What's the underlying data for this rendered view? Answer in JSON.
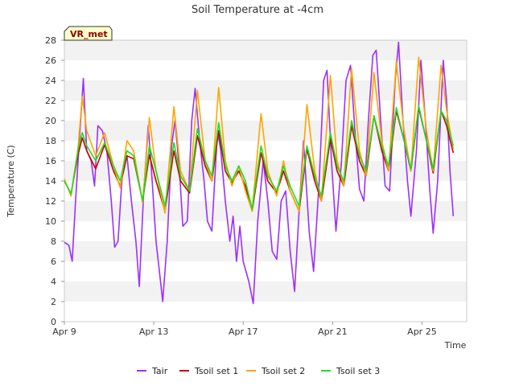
{
  "chart_data": {
    "type": "line",
    "title": "Soil Temperature at -4cm",
    "xlabel": "Time",
    "ylabel": "Temperature (C)",
    "site_label": "VR_met",
    "x_range_days": [
      9,
      27
    ],
    "xlim": [
      "Apr 9",
      "Apr 27"
    ],
    "x_ticks": [
      {
        "day": 9,
        "label": "Apr 9"
      },
      {
        "day": 13,
        "label": "Apr 13"
      },
      {
        "day": 17,
        "label": "Apr 17"
      },
      {
        "day": 21,
        "label": "Apr 21"
      },
      {
        "day": 25,
        "label": "Apr 25"
      }
    ],
    "ylim": [
      0,
      28
    ],
    "y_ticks": [
      0,
      2,
      4,
      6,
      8,
      10,
      12,
      14,
      16,
      18,
      20,
      22,
      24,
      26,
      28
    ],
    "grid": "horizontal bands",
    "legend_position": "bottom",
    "series": [
      {
        "name": "Tair",
        "color": "#9b30ff",
        "points": [
          [
            9.0,
            7.9
          ],
          [
            9.2,
            7.6
          ],
          [
            9.35,
            6.0
          ],
          [
            9.5,
            12.0
          ],
          [
            9.7,
            19.0
          ],
          [
            9.85,
            24.2
          ],
          [
            10.0,
            17.0
          ],
          [
            10.2,
            16.0
          ],
          [
            10.35,
            13.5
          ],
          [
            10.5,
            19.5
          ],
          [
            10.7,
            19.0
          ],
          [
            10.9,
            17.0
          ],
          [
            11.1,
            12.0
          ],
          [
            11.25,
            7.4
          ],
          [
            11.4,
            8.0
          ],
          [
            11.6,
            15.0
          ],
          [
            11.8,
            16.5
          ],
          [
            12.0,
            12.0
          ],
          [
            12.2,
            8.0
          ],
          [
            12.35,
            3.5
          ],
          [
            12.55,
            13.0
          ],
          [
            12.75,
            19.5
          ],
          [
            12.9,
            15.0
          ],
          [
            13.1,
            8.0
          ],
          [
            13.25,
            5.0
          ],
          [
            13.4,
            2.0
          ],
          [
            13.6,
            8.0
          ],
          [
            13.8,
            17.5
          ],
          [
            13.95,
            20.0
          ],
          [
            14.15,
            15.0
          ],
          [
            14.3,
            9.5
          ],
          [
            14.5,
            10.0
          ],
          [
            14.7,
            20.0
          ],
          [
            14.85,
            23.2
          ],
          [
            15.05,
            18.0
          ],
          [
            15.25,
            14.0
          ],
          [
            15.4,
            10.0
          ],
          [
            15.6,
            9.0
          ],
          [
            15.85,
            19.0
          ],
          [
            16.0,
            17.0
          ],
          [
            16.2,
            12.0
          ],
          [
            16.4,
            8.0
          ],
          [
            16.55,
            10.5
          ],
          [
            16.7,
            6.0
          ],
          [
            16.85,
            9.5
          ],
          [
            17.0,
            6.0
          ],
          [
            17.25,
            4.0
          ],
          [
            17.45,
            1.8
          ],
          [
            17.65,
            10.0
          ],
          [
            17.9,
            16.0
          ],
          [
            18.1,
            12.0
          ],
          [
            18.3,
            7.0
          ],
          [
            18.5,
            6.2
          ],
          [
            18.7,
            12.0
          ],
          [
            18.9,
            13.0
          ],
          [
            19.1,
            7.0
          ],
          [
            19.3,
            3.0
          ],
          [
            19.5,
            11.0
          ],
          [
            19.7,
            18.0
          ],
          [
            19.95,
            9.0
          ],
          [
            20.15,
            5.0
          ],
          [
            20.4,
            14.0
          ],
          [
            20.6,
            24.0
          ],
          [
            20.75,
            25.0
          ],
          [
            20.95,
            16.0
          ],
          [
            21.15,
            9.0
          ],
          [
            21.4,
            16.0
          ],
          [
            21.6,
            24.0
          ],
          [
            21.8,
            25.5
          ],
          [
            22.0,
            19.0
          ],
          [
            22.2,
            13.2
          ],
          [
            22.4,
            12.0
          ],
          [
            22.6,
            20.0
          ],
          [
            22.8,
            26.5
          ],
          [
            22.95,
            27.0
          ],
          [
            23.15,
            20.0
          ],
          [
            23.35,
            13.5
          ],
          [
            23.55,
            13.0
          ],
          [
            23.8,
            24.0
          ],
          [
            23.95,
            27.8
          ],
          [
            24.15,
            20.0
          ],
          [
            24.35,
            14.0
          ],
          [
            24.5,
            10.5
          ],
          [
            24.75,
            17.0
          ],
          [
            24.95,
            26.0
          ],
          [
            25.15,
            20.0
          ],
          [
            25.35,
            13.0
          ],
          [
            25.5,
            8.8
          ],
          [
            25.7,
            14.0
          ],
          [
            25.95,
            26.0
          ],
          [
            26.1,
            22.0
          ],
          [
            26.25,
            15.0
          ],
          [
            26.4,
            10.5
          ]
        ]
      },
      {
        "name": "Tsoil set 1",
        "color": "#cc0000",
        "points": [
          [
            9.0,
            14.0
          ],
          [
            9.3,
            12.7
          ],
          [
            9.6,
            16.5
          ],
          [
            9.8,
            18.3
          ],
          [
            10.0,
            17.0
          ],
          [
            10.4,
            15.2
          ],
          [
            10.8,
            17.6
          ],
          [
            11.2,
            15.0
          ],
          [
            11.5,
            13.5
          ],
          [
            11.8,
            16.5
          ],
          [
            12.1,
            16.2
          ],
          [
            12.5,
            12.0
          ],
          [
            12.8,
            16.6
          ],
          [
            13.1,
            14.0
          ],
          [
            13.5,
            11.0
          ],
          [
            13.9,
            17.0
          ],
          [
            14.2,
            14.0
          ],
          [
            14.6,
            12.8
          ],
          [
            14.95,
            18.5
          ],
          [
            15.3,
            15.5
          ],
          [
            15.6,
            14.0
          ],
          [
            15.9,
            19.0
          ],
          [
            16.2,
            15.0
          ],
          [
            16.5,
            13.8
          ],
          [
            16.8,
            15.0
          ],
          [
            17.1,
            13.5
          ],
          [
            17.4,
            11.0
          ],
          [
            17.8,
            16.8
          ],
          [
            18.1,
            14.0
          ],
          [
            18.5,
            12.8
          ],
          [
            18.8,
            15.0
          ],
          [
            19.1,
            13.0
          ],
          [
            19.5,
            11.0
          ],
          [
            19.85,
            17.2
          ],
          [
            20.2,
            14.0
          ],
          [
            20.5,
            12.0
          ],
          [
            20.9,
            18.2
          ],
          [
            21.2,
            15.0
          ],
          [
            21.5,
            13.5
          ],
          [
            21.85,
            19.5
          ],
          [
            22.2,
            16.0
          ],
          [
            22.5,
            14.5
          ],
          [
            22.85,
            20.5
          ],
          [
            23.2,
            17.0
          ],
          [
            23.5,
            15.0
          ],
          [
            23.85,
            21.0
          ],
          [
            24.2,
            18.0
          ],
          [
            24.5,
            15.0
          ],
          [
            24.85,
            21.3
          ],
          [
            25.2,
            18.0
          ],
          [
            25.5,
            14.8
          ],
          [
            25.85,
            21.0
          ],
          [
            26.1,
            19.5
          ],
          [
            26.4,
            16.8
          ]
        ]
      },
      {
        "name": "Tsoil set 2",
        "color": "#ffa500",
        "points": [
          [
            9.0,
            14.2
          ],
          [
            9.3,
            12.5
          ],
          [
            9.6,
            17.0
          ],
          [
            9.8,
            22.4
          ],
          [
            10.0,
            19.0
          ],
          [
            10.4,
            16.5
          ],
          [
            10.8,
            18.8
          ],
          [
            11.2,
            15.5
          ],
          [
            11.5,
            13.3
          ],
          [
            11.8,
            18.0
          ],
          [
            12.1,
            17.0
          ],
          [
            12.5,
            11.8
          ],
          [
            12.8,
            20.3
          ],
          [
            13.1,
            15.0
          ],
          [
            13.5,
            10.8
          ],
          [
            13.9,
            21.4
          ],
          [
            14.2,
            15.0
          ],
          [
            14.6,
            13.0
          ],
          [
            14.95,
            23.0
          ],
          [
            15.3,
            16.0
          ],
          [
            15.6,
            14.0
          ],
          [
            15.9,
            23.3
          ],
          [
            16.2,
            16.0
          ],
          [
            16.5,
            13.5
          ],
          [
            16.8,
            15.5
          ],
          [
            17.1,
            13.0
          ],
          [
            17.4,
            11.0
          ],
          [
            17.8,
            20.7
          ],
          [
            18.1,
            15.0
          ],
          [
            18.5,
            12.5
          ],
          [
            18.8,
            16.0
          ],
          [
            19.1,
            13.0
          ],
          [
            19.5,
            11.0
          ],
          [
            19.85,
            21.6
          ],
          [
            20.2,
            15.0
          ],
          [
            20.5,
            12.0
          ],
          [
            20.9,
            24.5
          ],
          [
            21.2,
            16.0
          ],
          [
            21.5,
            13.5
          ],
          [
            21.85,
            25.2
          ],
          [
            22.2,
            17.0
          ],
          [
            22.5,
            14.5
          ],
          [
            22.85,
            24.8
          ],
          [
            23.2,
            18.0
          ],
          [
            23.5,
            15.0
          ],
          [
            23.85,
            25.9
          ],
          [
            24.2,
            19.0
          ],
          [
            24.5,
            15.0
          ],
          [
            24.85,
            26.3
          ],
          [
            25.2,
            19.0
          ],
          [
            25.5,
            15.0
          ],
          [
            25.85,
            25.5
          ],
          [
            26.1,
            21.0
          ],
          [
            26.4,
            17.2
          ]
        ]
      },
      {
        "name": "Tsoil set 3",
        "color": "#22dd22",
        "points": [
          [
            9.0,
            14.0
          ],
          [
            9.3,
            12.7
          ],
          [
            9.6,
            17.0
          ],
          [
            9.8,
            18.8
          ],
          [
            10.0,
            17.5
          ],
          [
            10.4,
            16.0
          ],
          [
            10.8,
            17.8
          ],
          [
            11.2,
            15.5
          ],
          [
            11.5,
            14.0
          ],
          [
            11.8,
            17.0
          ],
          [
            12.1,
            16.5
          ],
          [
            12.5,
            12.0
          ],
          [
            12.8,
            17.5
          ],
          [
            13.1,
            15.0
          ],
          [
            13.5,
            11.5
          ],
          [
            13.9,
            17.8
          ],
          [
            14.2,
            14.5
          ],
          [
            14.6,
            13.0
          ],
          [
            14.95,
            19.2
          ],
          [
            15.3,
            16.0
          ],
          [
            15.6,
            14.5
          ],
          [
            15.9,
            19.8
          ],
          [
            16.2,
            15.5
          ],
          [
            16.5,
            14.0
          ],
          [
            16.8,
            15.5
          ],
          [
            17.1,
            14.0
          ],
          [
            17.4,
            11.2
          ],
          [
            17.8,
            17.5
          ],
          [
            18.1,
            14.5
          ],
          [
            18.5,
            13.0
          ],
          [
            18.8,
            15.5
          ],
          [
            19.1,
            13.5
          ],
          [
            19.5,
            11.5
          ],
          [
            19.85,
            17.5
          ],
          [
            20.2,
            14.5
          ],
          [
            20.5,
            12.5
          ],
          [
            20.9,
            18.8
          ],
          [
            21.2,
            15.5
          ],
          [
            21.5,
            14.0
          ],
          [
            21.85,
            20.0
          ],
          [
            22.2,
            16.5
          ],
          [
            22.5,
            15.0
          ],
          [
            22.85,
            20.5
          ],
          [
            23.2,
            17.5
          ],
          [
            23.5,
            15.5
          ],
          [
            23.85,
            21.3
          ],
          [
            24.2,
            18.0
          ],
          [
            24.5,
            15.2
          ],
          [
            24.85,
            21.5
          ],
          [
            25.2,
            18.0
          ],
          [
            25.5,
            15.2
          ],
          [
            25.85,
            21.0
          ],
          [
            26.1,
            20.0
          ],
          [
            26.4,
            17.5
          ]
        ]
      }
    ]
  }
}
